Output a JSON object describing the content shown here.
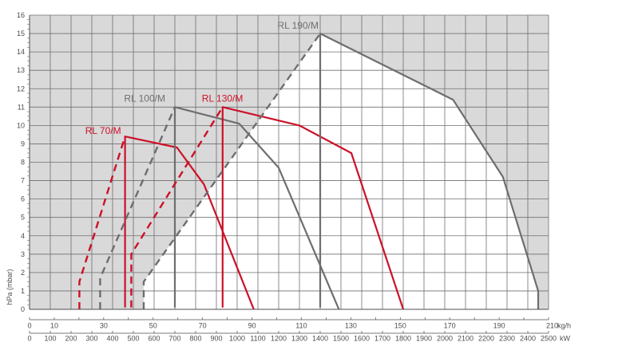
{
  "chart_data": {
    "type": "line",
    "title": "",
    "ylabel": "hPa (mbar)",
    "xlabel_kgh": "kg/h",
    "xlabel_kw": "kW",
    "ylim": [
      0,
      16
    ],
    "xlim_kw": [
      0,
      2500
    ],
    "y_ticks": [
      "0",
      "1",
      "2",
      "3",
      "4",
      "5",
      "6",
      "7",
      "8",
      "9",
      "10",
      "11",
      "12",
      "13",
      "14",
      "15",
      "16"
    ],
    "x_ticks_kgh": [
      "0",
      "10",
      "30",
      "50",
      "70",
      "90",
      "110",
      "130",
      "150",
      "170",
      "190",
      "210"
    ],
    "x_ticks_kw": [
      "0",
      "100",
      "200",
      "300",
      "400",
      "500",
      "600",
      "700",
      "800",
      "900",
      "1000",
      "1100",
      "1200",
      "1300",
      "1400",
      "1500",
      "1600",
      "1700",
      "1800",
      "1900",
      "2000",
      "2100",
      "2200",
      "2300",
      "2400",
      "2500"
    ],
    "grid": true,
    "colors": {
      "grey": "#6e6e6e",
      "red": "#cc1128",
      "shade": "#d9d9d9",
      "grid": "#6f6f6f"
    },
    "series": [
      {
        "name": "RL 70/M",
        "color": "#cc1128",
        "solid": [
          [
            460,
            0.1
          ],
          [
            460,
            9.4
          ],
          [
            710,
            8.8
          ],
          [
            840,
            6.8
          ],
          [
            1080,
            0
          ]
        ],
        "dashed": [
          [
            240,
            0
          ],
          [
            240,
            1.5
          ],
          [
            460,
            9.4
          ]
        ]
      },
      {
        "name": "RL 100/M",
        "color": "#6e6e6e",
        "solid": [
          [
            700,
            0.1
          ],
          [
            700,
            11
          ],
          [
            1010,
            10.1
          ],
          [
            1200,
            7.7
          ],
          [
            1490,
            0
          ]
        ],
        "dashed": [
          [
            340,
            0
          ],
          [
            340,
            1.7
          ],
          [
            700,
            11
          ]
        ]
      },
      {
        "name": "RL 130/M",
        "color": "#cc1128",
        "solid": [
          [
            930,
            0.1
          ],
          [
            930,
            11
          ],
          [
            1300,
            10
          ],
          [
            1550,
            8.5
          ],
          [
            1800,
            0
          ]
        ],
        "dashed": [
          [
            490,
            0.1
          ],
          [
            490,
            3
          ],
          [
            930,
            11
          ]
        ]
      },
      {
        "name": "RL 190/M",
        "color": "#6e6e6e",
        "solid": [
          [
            1400,
            0.1
          ],
          [
            1400,
            15
          ],
          [
            2040,
            11.4
          ],
          [
            2280,
            7.2
          ],
          [
            2450,
            1
          ],
          [
            2450,
            0
          ]
        ],
        "dashed": [
          [
            550,
            0
          ],
          [
            550,
            1.5
          ],
          [
            1400,
            15
          ]
        ]
      }
    ]
  }
}
